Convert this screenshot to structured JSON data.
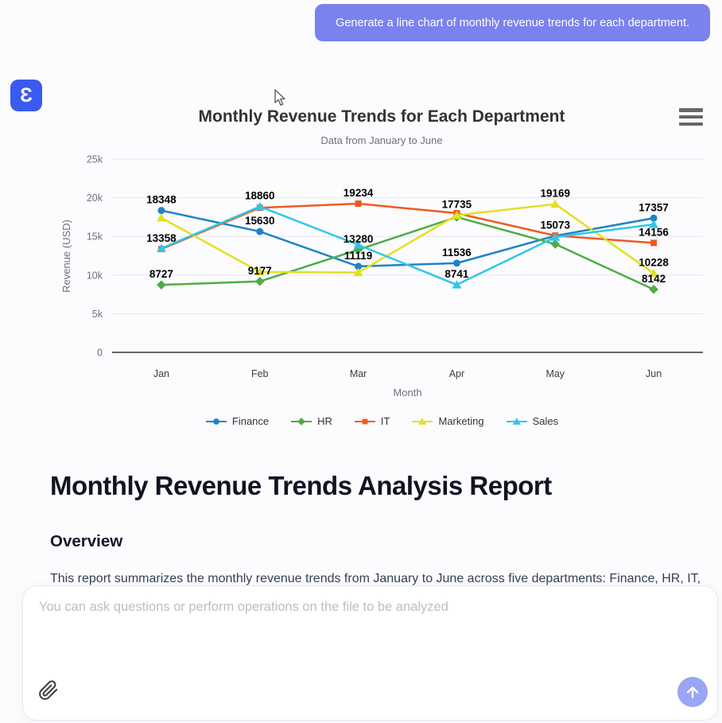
{
  "page": {
    "background": "#fcfcfe",
    "pointer_icon": "mouse-arrow-cursor"
  },
  "chat": {
    "user_message": "Generate a line chart of monthly revenue trends for each department.",
    "bubble_color": "#7b82ee"
  },
  "logo": {
    "glyph": "Ɛ",
    "color": "#3b5af0",
    "icon": "app-logo-icon"
  },
  "chart_data": {
    "type": "line",
    "title": "Monthly Revenue Trends for Each Department",
    "subtitle": "Data from January to June",
    "xlabel": "Month",
    "ylabel": "Revenue (USD)",
    "categories": [
      "Jan",
      "Feb",
      "Mar",
      "Apr",
      "May",
      "Jun"
    ],
    "ylim": [
      0,
      25000
    ],
    "ytick_values": [
      0,
      5000,
      10000,
      15000,
      20000,
      25000
    ],
    "ytick_labels": [
      "0",
      "5k",
      "10k",
      "15k",
      "20k",
      "25k"
    ],
    "grid": true,
    "legend_position": "bottom",
    "menu_icon": "hamburger-menu-icon",
    "series": [
      {
        "name": "Finance",
        "color": "#1f83c6",
        "symbol": "circle",
        "values": [
          18348,
          15630,
          11119,
          11536,
          15073,
          17357
        ],
        "labels_shown": [
          true,
          true,
          true,
          true,
          true,
          true
        ]
      },
      {
        "name": "HR",
        "color": "#4ead43",
        "symbol": "diamond",
        "values": [
          8727,
          9177,
          13280,
          17500,
          14000,
          8142
        ],
        "labels_shown": [
          true,
          true,
          true,
          false,
          false,
          true
        ]
      },
      {
        "name": "IT",
        "color": "#f25922",
        "symbol": "square",
        "values": [
          13358,
          18700,
          19234,
          18000,
          15100,
          14156
        ],
        "labels_shown": [
          true,
          false,
          true,
          false,
          false,
          true
        ]
      },
      {
        "name": "Marketing",
        "color": "#e3e021",
        "symbol": "triangle",
        "values": [
          17400,
          10400,
          10330,
          17735,
          19169,
          10228
        ],
        "labels_shown": [
          false,
          false,
          false,
          true,
          true,
          true
        ]
      },
      {
        "name": "Sales",
        "color": "#2ec7ea",
        "symbol": "triangle",
        "values": [
          13450,
          18860,
          13900,
          8741,
          14900,
          16550
        ],
        "labels_shown": [
          false,
          true,
          false,
          true,
          false,
          false
        ]
      }
    ]
  },
  "report": {
    "title": "Monthly Revenue Trends Analysis Report",
    "section_heading": "Overview",
    "paragraph": "This report summarizes the monthly revenue trends from January to June across five departments: Finance, HR, IT,"
  },
  "composer": {
    "placeholder": "You can ask questions or perform operations on the file to be analyzed",
    "attach_icon": "paperclip-icon",
    "send_icon": "arrow-up-icon",
    "send_button_color": "#98a6f3"
  }
}
